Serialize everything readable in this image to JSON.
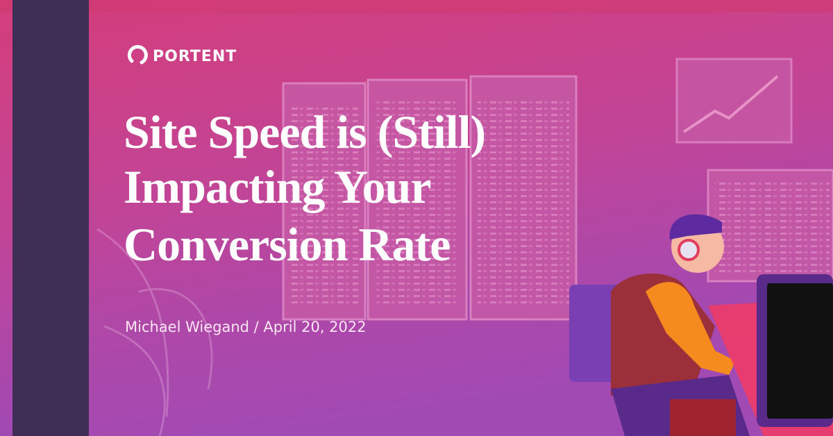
{
  "brand": {
    "name": "PORTENT"
  },
  "headline": {
    "lines": [
      "Site Speed is (Still)",
      "Impacting Your",
      "Conversion Rate"
    ]
  },
  "byline": "Michael Wiegand / April 20, 2022"
}
